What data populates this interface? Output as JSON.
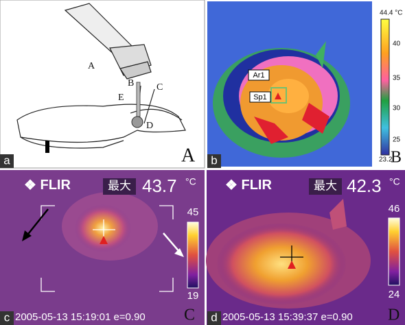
{
  "panels": [
    {
      "letter": "a",
      "corner_label": "A",
      "labels": [
        "A",
        "B",
        "C",
        "D",
        "E"
      ]
    },
    {
      "letter": "b",
      "corner_label": "B",
      "scale_max": "44.4 °C",
      "scale_ticks": [
        40,
        35,
        30,
        25
      ],
      "scale_min": 23.2,
      "markers": [
        "Ar1",
        "Sp1"
      ]
    },
    {
      "letter": "c",
      "corner_label": "C",
      "brand": "FLIR",
      "max_label": "最大",
      "max_value": 43.7,
      "unit": "°C",
      "scale_max": 45,
      "scale_min": 19,
      "timestamp": "2005-05-13 15:19:01 e=0.90"
    },
    {
      "letter": "d",
      "corner_label": "D",
      "brand": "FLIR",
      "max_label": "最大",
      "max_value": 42.3,
      "unit": "°C",
      "scale_max": 46,
      "scale_min": 24,
      "timestamp": "2005-05-13 15:39:37 e=0.90"
    }
  ]
}
